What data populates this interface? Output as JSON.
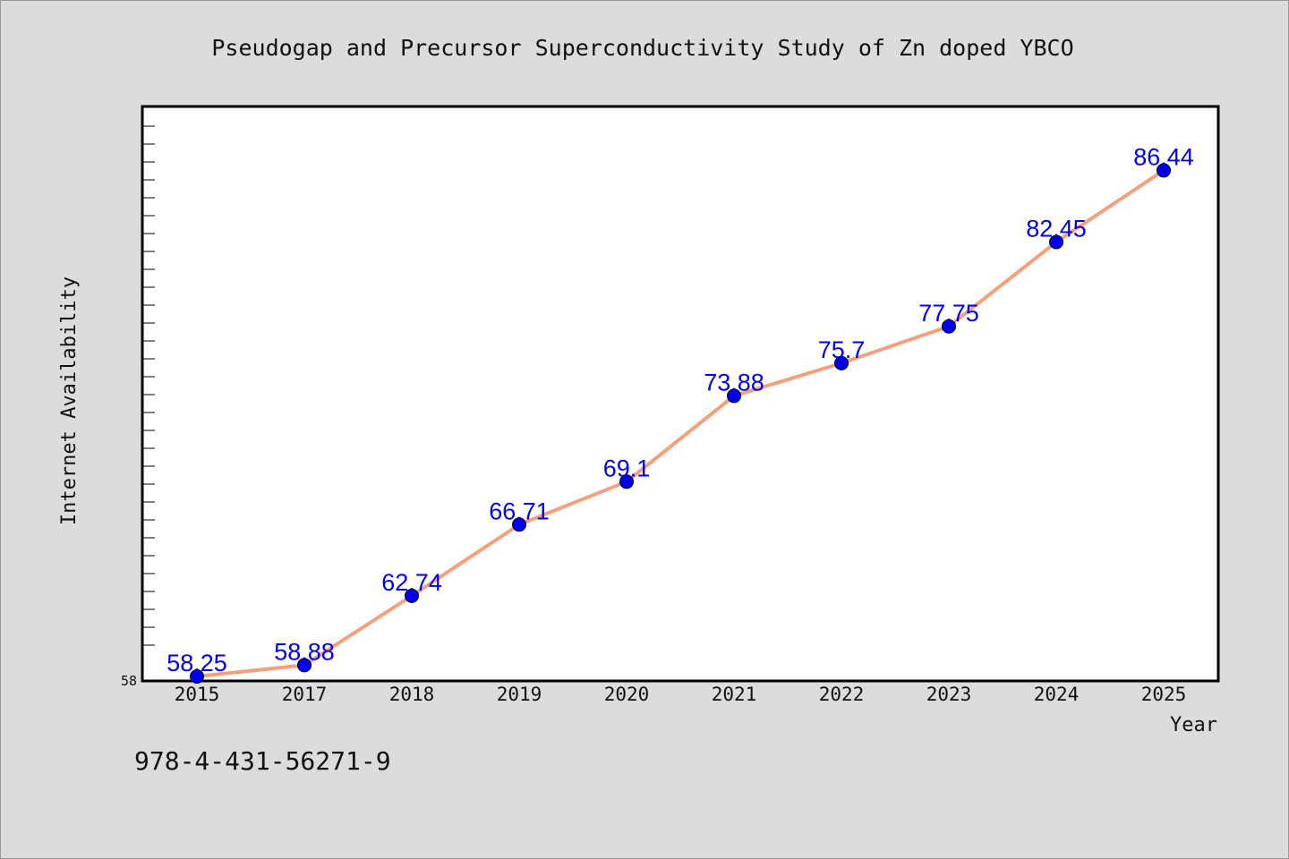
{
  "chart_data": {
    "type": "line",
    "title": "Pseudogap and Precursor Superconductivity Study of Zn doped YBCO",
    "xlabel": "Year",
    "ylabel": "Internet Availability",
    "categories": [
      "2015",
      "2017",
      "2018",
      "2019",
      "2020",
      "2021",
      "2022",
      "2023",
      "2024",
      "2025"
    ],
    "series": [
      {
        "values": [
          58.25,
          58.88,
          62.74,
          66.71,
          69.1,
          73.88,
          75.7,
          77.75,
          82.45,
          86.44
        ],
        "labels": [
          "58.25",
          "58.88",
          "62.74",
          "66.71",
          "69.1",
          "73.88",
          "75.7",
          "77.75",
          "82.45",
          "86.44"
        ],
        "line_color": "#f4a07c",
        "marker_color": "#0000ee",
        "label_color": "#0000ee"
      }
    ],
    "y_tick_labels": [
      "58"
    ],
    "ylim": [
      58,
      90
    ],
    "grid": false,
    "legend": "none"
  },
  "footer": {
    "code": "978-4-431-56271-9"
  },
  "colors": {
    "background": "#dcdcdc",
    "plot_background": "#ffffff",
    "axis": "#000000"
  }
}
